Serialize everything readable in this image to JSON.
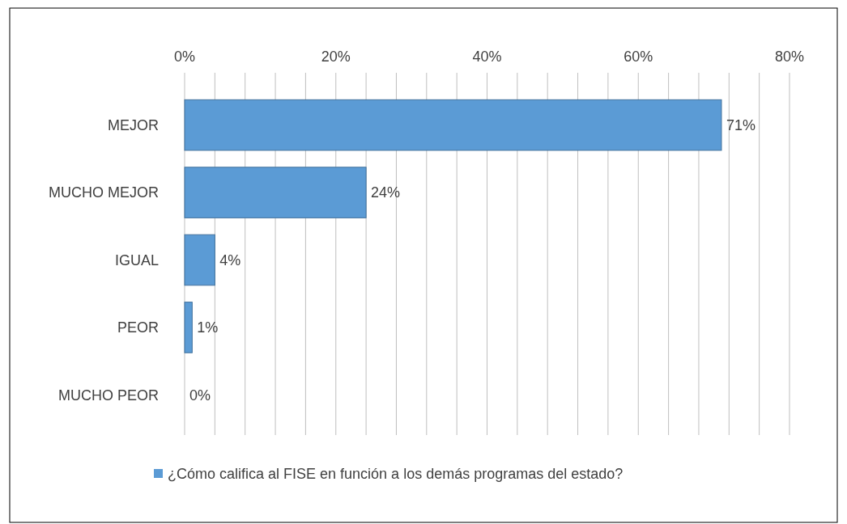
{
  "chart_data": {
    "type": "bar",
    "orientation": "horizontal",
    "categories": [
      "MEJOR",
      "MUCHO MEJOR",
      "IGUAL",
      "PEOR",
      "MUCHO PEOR"
    ],
    "series": [
      {
        "name": "¿Cómo califica al FISE en función a los demás programas del estado?",
        "color": "#5b9bd5",
        "values": [
          71,
          24,
          4,
          1,
          0
        ],
        "value_labels": [
          "71%",
          "24%",
          "4%",
          "1%",
          "0%"
        ]
      }
    ],
    "xlim": [
      0,
      80
    ],
    "xticks": [
      {
        "value": 0,
        "label": "0%"
      },
      {
        "value": 4,
        "label": null
      },
      {
        "value": 8,
        "label": null
      },
      {
        "value": 12,
        "label": null
      },
      {
        "value": 16,
        "label": null
      },
      {
        "value": 20,
        "label": "20%"
      },
      {
        "value": 24,
        "label": null
      },
      {
        "value": 28,
        "label": null
      },
      {
        "value": 32,
        "label": null
      },
      {
        "value": 36,
        "label": null
      },
      {
        "value": 40,
        "label": "40%"
      },
      {
        "value": 44,
        "label": null
      },
      {
        "value": 48,
        "label": null
      },
      {
        "value": 52,
        "label": null
      },
      {
        "value": 56,
        "label": null
      },
      {
        "value": 60,
        "label": "60%"
      },
      {
        "value": 64,
        "label": null
      },
      {
        "value": 68,
        "label": null
      },
      {
        "value": 72,
        "label": null
      },
      {
        "value": 76,
        "label": null
      },
      {
        "value": 80,
        "label": "80%"
      }
    ],
    "grid": "x",
    "legend": "bottom"
  }
}
